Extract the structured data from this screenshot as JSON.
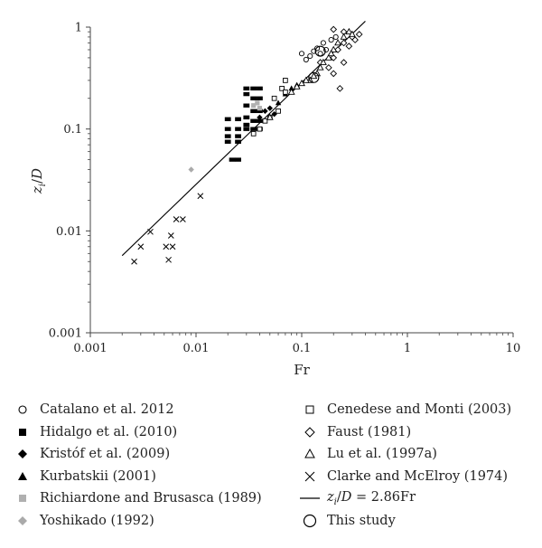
{
  "chart_data": {
    "type": "scatter",
    "title": "",
    "xlabel": "Fr",
    "ylabel": "zi/D",
    "xscale": "log",
    "yscale": "log",
    "xlim": [
      0.001,
      10
    ],
    "ylim": [
      0.001,
      1
    ],
    "grid": false,
    "legend_placement": "below",
    "x_ticks": [
      "0.001",
      "0.01",
      "0.1",
      "1",
      "10"
    ],
    "y_ticks": [
      "0.001",
      "0.01",
      "0.1",
      "1"
    ],
    "series": [
      {
        "name": "Catalano et al. 2012",
        "marker": "open-circle",
        "points": [
          [
            0.12,
            0.52
          ],
          [
            0.13,
            0.58
          ],
          [
            0.14,
            0.62
          ],
          [
            0.15,
            0.55
          ],
          [
            0.17,
            0.6
          ],
          [
            0.1,
            0.55
          ],
          [
            0.11,
            0.48
          ],
          [
            0.16,
            0.7
          ],
          [
            0.19,
            0.75
          ],
          [
            0.21,
            0.8
          ]
        ]
      },
      {
        "name": "Hidalgo et al. (2010)",
        "marker": "filled-square-row",
        "points": [
          [
            0.03,
            0.25
          ],
          [
            0.035,
            0.25
          ],
          [
            0.04,
            0.25
          ],
          [
            0.03,
            0.22
          ],
          [
            0.035,
            0.2
          ],
          [
            0.04,
            0.2
          ],
          [
            0.03,
            0.17
          ],
          [
            0.035,
            0.15
          ],
          [
            0.04,
            0.15
          ],
          [
            0.03,
            0.13
          ],
          [
            0.02,
            0.125
          ],
          [
            0.025,
            0.125
          ],
          [
            0.02,
            0.1
          ],
          [
            0.025,
            0.1
          ],
          [
            0.02,
            0.085
          ],
          [
            0.025,
            0.085
          ],
          [
            0.02,
            0.075
          ],
          [
            0.025,
            0.075
          ],
          [
            0.022,
            0.05
          ],
          [
            0.025,
            0.05
          ],
          [
            0.03,
            0.1
          ],
          [
            0.035,
            0.1
          ],
          [
            0.04,
            0.1
          ],
          [
            0.03,
            0.11
          ],
          [
            0.035,
            0.12
          ],
          [
            0.04,
            0.12
          ]
        ]
      },
      {
        "name": "Kristóf et al. (2009)",
        "marker": "filled-diamond",
        "points": [
          [
            0.04,
            0.13
          ],
          [
            0.045,
            0.15
          ],
          [
            0.05,
            0.16
          ],
          [
            0.055,
            0.14
          ]
        ]
      },
      {
        "name": "Kurbatskii (2001)",
        "marker": "filled-triangle",
        "points": [
          [
            0.06,
            0.18
          ],
          [
            0.07,
            0.22
          ],
          [
            0.08,
            0.25
          ],
          [
            0.09,
            0.27
          ]
        ]
      },
      {
        "name": "Richiardone and Brusasca (1989)",
        "marker": "gray-square",
        "points": [
          [
            0.035,
            0.17
          ],
          [
            0.038,
            0.18
          ],
          [
            0.04,
            0.16
          ]
        ]
      },
      {
        "name": "Yoshikado (1992)",
        "marker": "gray-diamond",
        "points": [
          [
            0.009,
            0.04
          ]
        ]
      },
      {
        "name": "Cenedese and Monti (2003)",
        "marker": "open-square",
        "points": [
          [
            0.035,
            0.09
          ],
          [
            0.04,
            0.1
          ],
          [
            0.045,
            0.12
          ],
          [
            0.05,
            0.13
          ],
          [
            0.06,
            0.15
          ],
          [
            0.055,
            0.2
          ],
          [
            0.065,
            0.25
          ],
          [
            0.07,
            0.3
          ],
          [
            0.07,
            0.23
          ]
        ]
      },
      {
        "name": "Faust (1981)",
        "marker": "open-diamond",
        "points": [
          [
            0.2,
            0.95
          ],
          [
            0.25,
            0.9
          ],
          [
            0.3,
            0.8
          ],
          [
            0.35,
            0.85
          ],
          [
            0.25,
            0.7
          ],
          [
            0.22,
            0.6
          ],
          [
            0.2,
            0.5
          ],
          [
            0.25,
            0.45
          ],
          [
            0.2,
            0.35
          ],
          [
            0.23,
            0.25
          ],
          [
            0.15,
            0.45
          ],
          [
            0.18,
            0.4
          ],
          [
            0.28,
            0.65
          ],
          [
            0.32,
            0.75
          ]
        ]
      },
      {
        "name": "Lu et al. (1997a)",
        "marker": "open-triangle",
        "points": [
          [
            0.05,
            0.13
          ],
          [
            0.08,
            0.23
          ],
          [
            0.09,
            0.26
          ],
          [
            0.1,
            0.28
          ],
          [
            0.12,
            0.3
          ],
          [
            0.14,
            0.35
          ],
          [
            0.15,
            0.4
          ],
          [
            0.16,
            0.45
          ],
          [
            0.18,
            0.5
          ],
          [
            0.2,
            0.6
          ],
          [
            0.22,
            0.7
          ],
          [
            0.25,
            0.8
          ],
          [
            0.28,
            0.9
          ],
          [
            0.3,
            0.85
          ],
          [
            0.19,
            0.55
          ],
          [
            0.13,
            0.33
          ],
          [
            0.11,
            0.3
          ]
        ]
      },
      {
        "name": "Clarke and McElroy (1974)",
        "marker": "x",
        "points": [
          [
            0.0026,
            0.005
          ],
          [
            0.003,
            0.007
          ],
          [
            0.0037,
            0.0098
          ],
          [
            0.0052,
            0.007
          ],
          [
            0.0055,
            0.0052
          ],
          [
            0.0058,
            0.009
          ],
          [
            0.006,
            0.007
          ],
          [
            0.0065,
            0.013
          ],
          [
            0.0075,
            0.013
          ],
          [
            0.011,
            0.022
          ]
        ]
      },
      {
        "name": "This study",
        "marker": "large-open-circle",
        "points": [
          [
            0.13,
            0.32
          ],
          [
            0.15,
            0.58
          ]
        ]
      }
    ],
    "fit_line": {
      "name": "zi/D = 2.86Fr",
      "coefficient": 2.86,
      "x_range": [
        0.002,
        0.4
      ]
    }
  },
  "legend_left": [
    {
      "label": "Catalano et al. 2012",
      "marker": "open-circle"
    },
    {
      "label": "Hidalgo et al. (2010)",
      "marker": "filled-square"
    },
    {
      "label": "Kristóf et al. (2009)",
      "marker": "filled-diamond"
    },
    {
      "label": "Kurbatskii (2001)",
      "marker": "filled-triangle"
    },
    {
      "label": "Richiardone and Brusasca (1989)",
      "marker": "gray-square"
    },
    {
      "label": "Yoshikado (1992)",
      "marker": "gray-diamond"
    }
  ],
  "legend_right": [
    {
      "label": "Cenedese and Monti (2003)",
      "marker": "open-square"
    },
    {
      "label": "Faust (1981)",
      "marker": "open-diamond"
    },
    {
      "label": "Lu et al. (1997a)",
      "marker": "open-triangle"
    },
    {
      "label": "Clarke and McElroy (1974)",
      "marker": "x"
    },
    {
      "label": "zi/D = 2.86Fr",
      "marker": "line"
    },
    {
      "label": "This study",
      "marker": "large-open-circle"
    }
  ]
}
